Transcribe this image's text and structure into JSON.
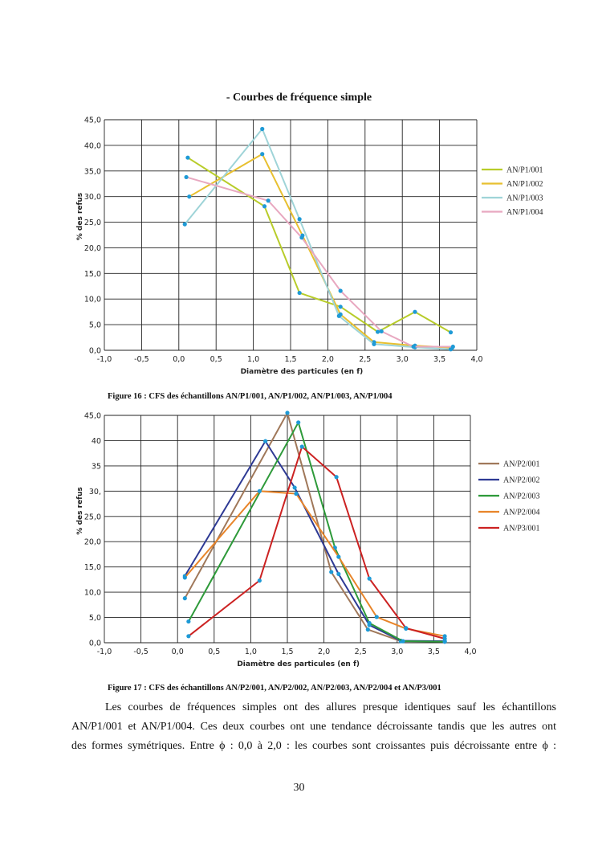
{
  "section_title": "- Courbes de fréquence simple",
  "chart_data": [
    {
      "type": "line",
      "title": "",
      "xlabel": "Diamètre des particules (en f)",
      "ylabel": "% des refus",
      "xlim": [
        -1.0,
        4.0
      ],
      "ylim": [
        0,
        45
      ],
      "x_ticks": [
        "-1,0",
        "-0,5",
        "0,0",
        "0,5",
        "1,0",
        "1,5",
        "2,0",
        "2,5",
        "3,0",
        "3,5",
        "4,0"
      ],
      "y_ticks": [
        "0,0",
        "5,0",
        "10,0",
        "15,0",
        "20,0",
        "25,0",
        "30,0",
        "35,0",
        "40,0",
        "45,0"
      ],
      "grid": true,
      "legend": "right",
      "series": [
        {
          "name": "AN/P1/001",
          "color": "#b8cc2a",
          "x": [
            0.12,
            1.15,
            1.62,
            2.17,
            2.67,
            3.17,
            3.65
          ],
          "y": [
            37.6,
            28.1,
            11.2,
            8.5,
            3.6,
            7.5,
            3.5
          ]
        },
        {
          "name": "AN/P1/002",
          "color": "#e8c030",
          "x": [
            0.14,
            1.12,
            1.66,
            2.17,
            2.62,
            3.17,
            3.67
          ],
          "y": [
            30.0,
            38.3,
            22.4,
            7.0,
            1.6,
            0.9,
            0.5
          ]
        },
        {
          "name": "AN/P1/003",
          "color": "#9fd4d8",
          "x": [
            0.08,
            1.12,
            1.62,
            2.15,
            2.62,
            3.17,
            3.65
          ],
          "y": [
            24.6,
            43.2,
            25.6,
            6.7,
            1.2,
            0.6,
            0.2
          ]
        },
        {
          "name": "AN/P1/004",
          "color": "#e8a8c0",
          "x": [
            0.1,
            1.2,
            1.65,
            2.17,
            2.72,
            3.15,
            3.68
          ],
          "y": [
            33.8,
            29.2,
            22.0,
            11.6,
            3.7,
            0.7,
            0.7
          ]
        }
      ]
    },
    {
      "type": "line",
      "title": "",
      "xlabel": "Diamètre des particules (en f)",
      "ylabel": "% des refus",
      "xlim": [
        -1.0,
        4.0
      ],
      "ylim": [
        0,
        45
      ],
      "x_ticks": [
        "-1,0",
        "-0,5",
        "0,0",
        "0,5",
        "1,0",
        "1,5",
        "2,0",
        "2,5",
        "3,0",
        "3,5",
        "4,0"
      ],
      "y_ticks": [
        "0,0",
        "5,0",
        "10,0",
        "15,0",
        "20,0",
        "25,0",
        "30,",
        "35",
        "40",
        "45,0"
      ],
      "grid": true,
      "legend": "right",
      "series": [
        {
          "name": "AN/P2/001",
          "color": "#a0785a",
          "x": [
            0.1,
            1.5,
            2.1,
            2.6,
            3.05,
            3.65
          ],
          "y": [
            8.8,
            45.5,
            14.0,
            2.6,
            0.3,
            0.3
          ]
        },
        {
          "name": "AN/P2/002",
          "color": "#2e3a94",
          "x": [
            0.1,
            1.2,
            1.6,
            2.2,
            2.62,
            3.05,
            3.65
          ],
          "y": [
            13.2,
            39.9,
            30.7,
            13.6,
            3.5,
            0.4,
            0.3
          ]
        },
        {
          "name": "AN/P2/003",
          "color": "#2e9a3a",
          "x": [
            0.15,
            1.65,
            2.15,
            2.62,
            3.08,
            3.65
          ],
          "y": [
            4.2,
            43.6,
            18.8,
            3.9,
            0.3,
            0.2
          ]
        },
        {
          "name": "AN/P2/004",
          "color": "#e8852a",
          "x": [
            0.1,
            1.12,
            1.62,
            2.2,
            2.72,
            3.12,
            3.65
          ],
          "y": [
            12.9,
            30.0,
            29.5,
            17.0,
            5.1,
            2.8,
            1.3
          ]
        },
        {
          "name": "AN/P3/001",
          "color": "#cc2222",
          "x": [
            0.15,
            1.12,
            1.7,
            2.17,
            2.62,
            3.12,
            3.65
          ],
          "y": [
            1.3,
            12.3,
            38.8,
            32.8,
            12.7,
            2.9,
            0.8
          ]
        }
      ]
    }
  ],
  "figure16_caption": "Figure 16 : CFS des échantillons AN/P1/001, AN/P1/002, AN/P1/003, AN/P1/004",
  "figure17_caption": "Figure 17 : CFS des échantillons AN/P2/001, AN/P2/002, AN/P2/003, AN/P2/004 et AN/P3/001",
  "paragraph_lines": [
    "Les courbes de fréquences simples ont des allures presque identiques sauf les échantillons",
    "AN/P1/001 et AN/P1/004. Ces deux courbes ont une tendance décroissante tandis que les autres ont",
    "des formes symétriques. Entre ϕ : 0,0 à  2,0 : les courbes sont croissantes puis décroissante entre ϕ :"
  ],
  "page_number": "30"
}
